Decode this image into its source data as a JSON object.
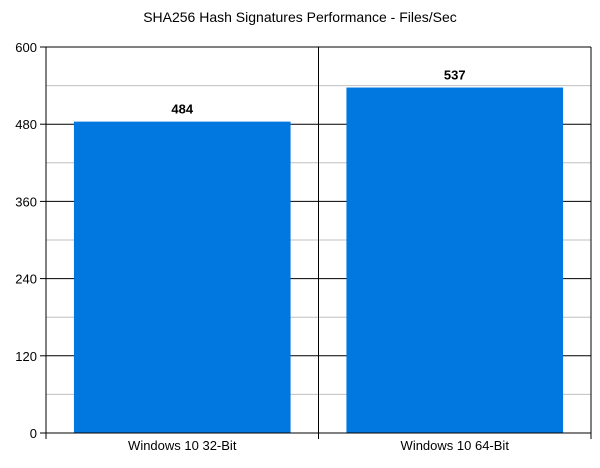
{
  "chart_data": {
    "type": "bar",
    "title": "SHA256 Hash Signatures Performance - Files/Sec",
    "xlabel": "",
    "ylabel": "",
    "categories": [
      "Windows 10 32-Bit",
      "Windows 10 64-Bit"
    ],
    "values": [
      484,
      537
    ],
    "data_labels": [
      "484",
      "537"
    ],
    "ylim": [
      0,
      600
    ],
    "y_major_ticks": [
      0,
      120,
      240,
      360,
      480,
      600
    ],
    "y_tick_labels": [
      "0",
      "120",
      "240",
      "360",
      "480",
      "600"
    ],
    "y_minor_gridlines": [
      60,
      180,
      300,
      420,
      540
    ],
    "grid": true,
    "legend": "none",
    "colors": {
      "bar": "#0078e0",
      "major_grid": "#000000",
      "minor_grid": "#c0c0c0",
      "text": "#000000"
    }
  }
}
